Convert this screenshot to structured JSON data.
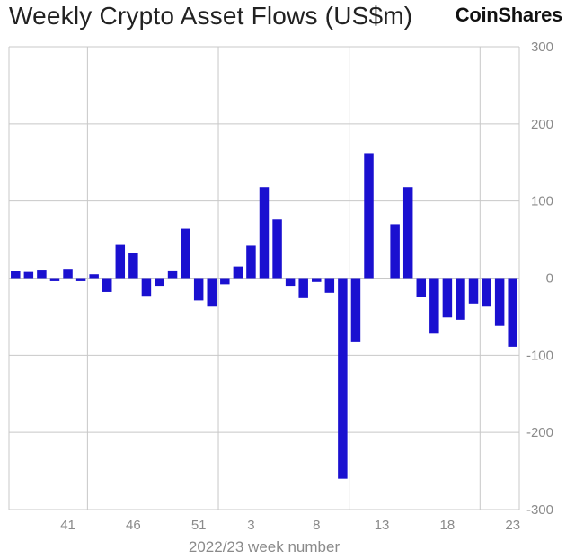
{
  "header": {
    "title": "Weekly Crypto Asset Flows (US$m)",
    "brand": "CoinShares"
  },
  "colors": {
    "bar": "#1a10d0",
    "grid": "#c8c8c8",
    "tick_text": "#8a8a8a"
  },
  "chart_data": {
    "type": "bar",
    "title": "Weekly Crypto Asset Flows (US$m)",
    "xlabel": "2022/23 week number",
    "ylabel": "",
    "ylim": [
      -300,
      300
    ],
    "y_ticks": [
      300,
      200,
      100,
      0,
      -100,
      -200,
      -300
    ],
    "y_axis_side": "right",
    "x_tick_labels": [
      "41",
      "46",
      "51",
      "3",
      "8",
      "13",
      "18",
      "23"
    ],
    "grid": true,
    "categories": [
      "37",
      "38",
      "39",
      "40",
      "41",
      "42",
      "43",
      "44",
      "45",
      "46",
      "47",
      "48",
      "49",
      "50",
      "51",
      "52",
      "1",
      "2",
      "3",
      "4",
      "5",
      "6",
      "7",
      "8",
      "9",
      "10",
      "11",
      "12",
      "13",
      "14",
      "15",
      "16",
      "17",
      "18",
      "19",
      "20",
      "21",
      "22",
      "23"
    ],
    "values": [
      9,
      8,
      11,
      -4,
      12,
      -4,
      5,
      -18,
      43,
      33,
      -23,
      -10,
      10,
      64,
      -29,
      -37,
      -8,
      15,
      42,
      118,
      76,
      -10,
      -26,
      -5,
      -19,
      -260,
      -82,
      162,
      0,
      70,
      118,
      -24,
      -72,
      -51,
      -54,
      -33,
      -37,
      -62,
      -89
    ]
  }
}
